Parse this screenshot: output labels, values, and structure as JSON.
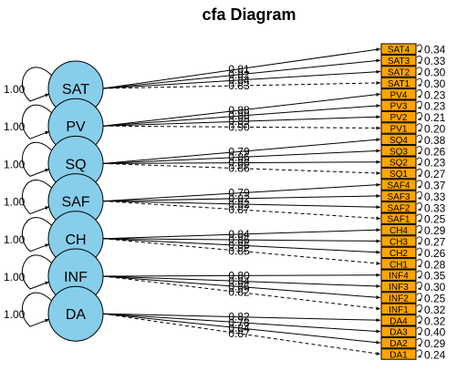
{
  "title": "cfa Diagram",
  "latents": [
    {
      "name": "SAT",
      "variance": "1.00"
    },
    {
      "name": "PV",
      "variance": "1.00"
    },
    {
      "name": "SQ",
      "variance": "1.00"
    },
    {
      "name": "SAF",
      "variance": "1.00"
    },
    {
      "name": "CH",
      "variance": "1.00"
    },
    {
      "name": "INF",
      "variance": "1.00"
    },
    {
      "name": "DA",
      "variance": "1.00"
    }
  ],
  "indicators": [
    {
      "name": "SAT4",
      "latent": 0,
      "loading": "0.81",
      "residual": "0.34"
    },
    {
      "name": "SAT3",
      "latent": 0,
      "loading": "0.82",
      "residual": "0.33"
    },
    {
      "name": "SAT2",
      "latent": 0,
      "loading": "0.84",
      "residual": "0.30"
    },
    {
      "name": "SAT1",
      "latent": 0,
      "loading": "0.83",
      "residual": "0.30"
    },
    {
      "name": "PV4",
      "latent": 1,
      "loading": "0.88",
      "residual": "0.23"
    },
    {
      "name": "PV3",
      "latent": 1,
      "loading": "0.88",
      "residual": "0.23"
    },
    {
      "name": "PV2",
      "latent": 1,
      "loading": "0.89",
      "residual": "0.21"
    },
    {
      "name": "PV1",
      "latent": 1,
      "loading": "0.90",
      "residual": "0.20"
    },
    {
      "name": "SQ4",
      "latent": 2,
      "loading": "0.79",
      "residual": "0.38"
    },
    {
      "name": "SQ3",
      "latent": 2,
      "loading": "0.86",
      "residual": "0.26"
    },
    {
      "name": "SQ2",
      "latent": 2,
      "loading": "0.88",
      "residual": "0.23"
    },
    {
      "name": "SQ1",
      "latent": 2,
      "loading": "0.86",
      "residual": "0.27"
    },
    {
      "name": "SAF4",
      "latent": 3,
      "loading": "0.79",
      "residual": "0.37"
    },
    {
      "name": "SAF3",
      "latent": 3,
      "loading": "0.82",
      "residual": "0.33"
    },
    {
      "name": "SAF2",
      "latent": 3,
      "loading": "0.82",
      "residual": "0.33"
    },
    {
      "name": "SAF1",
      "latent": 3,
      "loading": "0.87",
      "residual": "0.25"
    },
    {
      "name": "CH4",
      "latent": 4,
      "loading": "0.84",
      "residual": "0.29"
    },
    {
      "name": "CH3",
      "latent": 4,
      "loading": "0.86",
      "residual": "0.27"
    },
    {
      "name": "CH2",
      "latent": 4,
      "loading": "0.86",
      "residual": "0.26"
    },
    {
      "name": "CH1",
      "latent": 4,
      "loading": "0.85",
      "residual": "0.28"
    },
    {
      "name": "INF4",
      "latent": 5,
      "loading": "0.80",
      "residual": "0.35"
    },
    {
      "name": "INF3",
      "latent": 5,
      "loading": "0.84",
      "residual": "0.30"
    },
    {
      "name": "INF2",
      "latent": 5,
      "loading": "0.86",
      "residual": "0.25"
    },
    {
      "name": "INF1",
      "latent": 5,
      "loading": "0.82",
      "residual": "0.32"
    },
    {
      "name": "DA4",
      "latent": 6,
      "loading": "0.82",
      "residual": "0.32"
    },
    {
      "name": "DA3",
      "latent": 6,
      "loading": "0.78",
      "residual": "0.40"
    },
    {
      "name": "DA2",
      "latent": 6,
      "loading": "0.84",
      "residual": "0.29"
    },
    {
      "name": "DA1",
      "latent": 6,
      "loading": "0.87",
      "residual": "0.24"
    }
  ],
  "colors": {
    "latent_fill": "#87CEEB",
    "indicator_fill": "#FFA500",
    "edge": "#000000"
  }
}
